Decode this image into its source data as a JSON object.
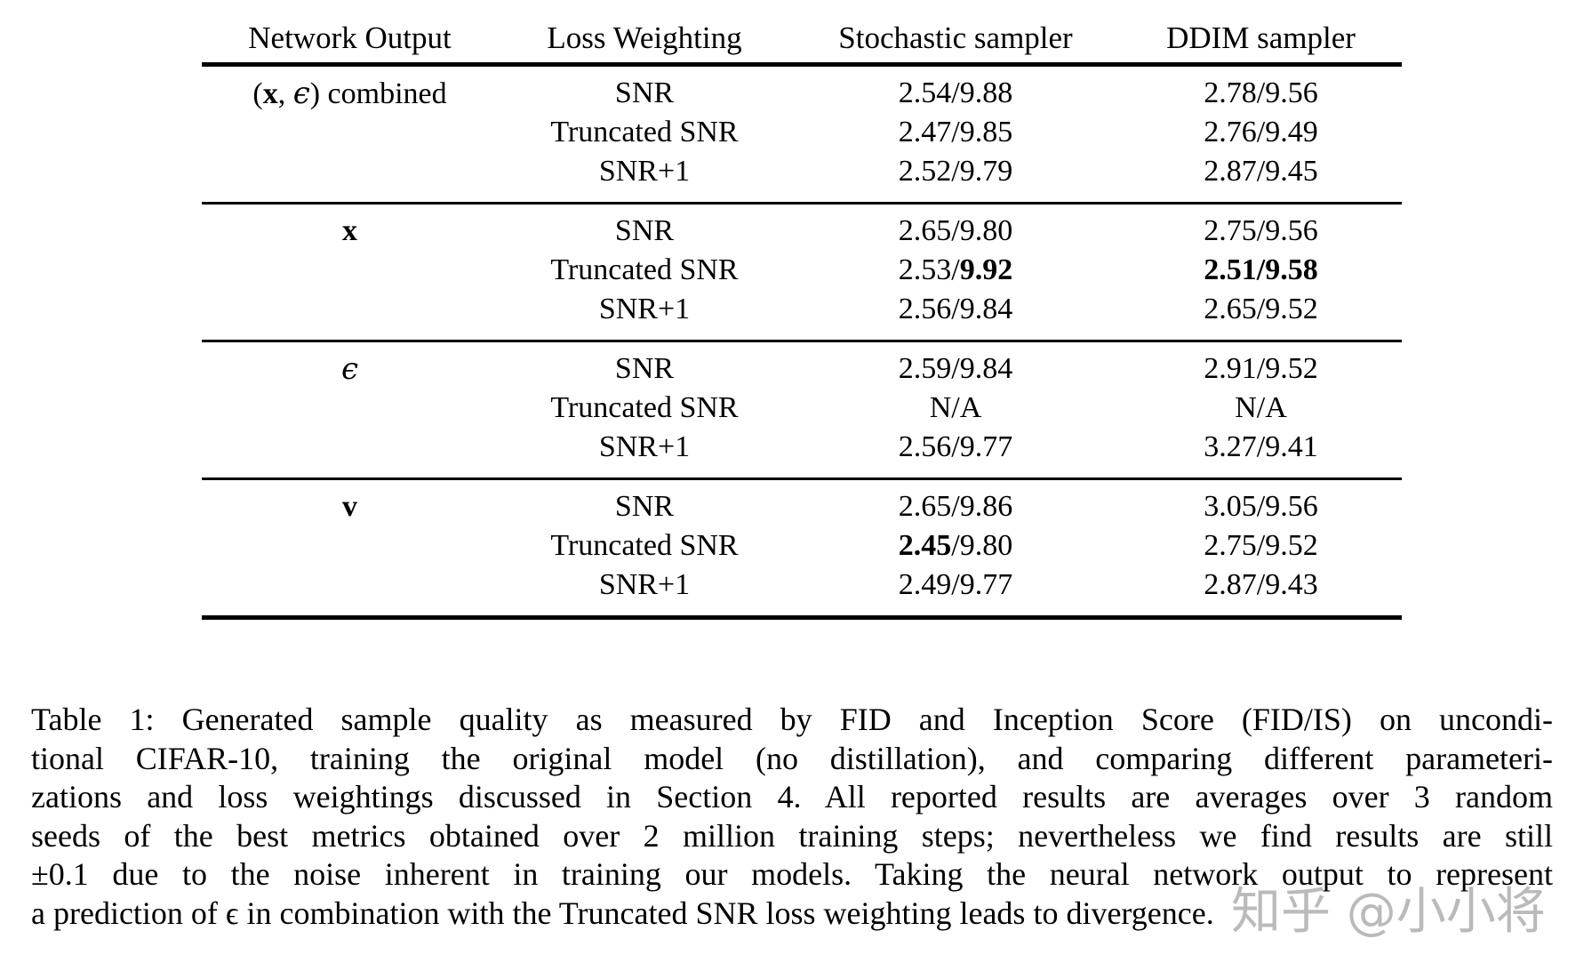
{
  "table": {
    "headers": [
      "Network Output",
      "Loss Weighting",
      "Stochastic sampler",
      "DDIM sampler"
    ],
    "groups": [
      {
        "output": [
          [
            "(",
            "n"
          ],
          [
            "x",
            "b"
          ],
          [
            ", ",
            "n"
          ],
          [
            "ϵ",
            "m"
          ],
          [
            ") combined",
            "n"
          ]
        ],
        "rows": [
          {
            "weighting": "SNR",
            "stochastic": [
              [
                "2.54/9.88",
                "n"
              ]
            ],
            "ddim": [
              [
                "2.78/9.56",
                "n"
              ]
            ]
          },
          {
            "weighting": "Truncated SNR",
            "stochastic": [
              [
                "2.47/9.85",
                "n"
              ]
            ],
            "ddim": [
              [
                "2.76/9.49",
                "n"
              ]
            ]
          },
          {
            "weighting": "SNR+1",
            "stochastic": [
              [
                "2.52/9.79",
                "n"
              ]
            ],
            "ddim": [
              [
                "2.87/9.45",
                "n"
              ]
            ]
          }
        ]
      },
      {
        "output": [
          [
            "x",
            "b"
          ]
        ],
        "rows": [
          {
            "weighting": "SNR",
            "stochastic": [
              [
                "2.65/9.80",
                "n"
              ]
            ],
            "ddim": [
              [
                "2.75/9.56",
                "n"
              ]
            ]
          },
          {
            "weighting": "Truncated SNR",
            "stochastic": [
              [
                "2.53/",
                "n"
              ],
              [
                "9.92",
                "b"
              ]
            ],
            "ddim": [
              [
                "2.51/9.58",
                "b"
              ]
            ]
          },
          {
            "weighting": "SNR+1",
            "stochastic": [
              [
                "2.56/9.84",
                "n"
              ]
            ],
            "ddim": [
              [
                "2.65/9.52",
                "n"
              ]
            ]
          }
        ]
      },
      {
        "output": [
          [
            "ϵ",
            "m"
          ]
        ],
        "rows": [
          {
            "weighting": "SNR",
            "stochastic": [
              [
                "2.59/9.84",
                "n"
              ]
            ],
            "ddim": [
              [
                "2.91/9.52",
                "n"
              ]
            ]
          },
          {
            "weighting": "Truncated SNR",
            "stochastic": [
              [
                "N/A",
                "n"
              ]
            ],
            "ddim": [
              [
                "N/A",
                "n"
              ]
            ]
          },
          {
            "weighting": "SNR+1",
            "stochastic": [
              [
                "2.56/9.77",
                "n"
              ]
            ],
            "ddim": [
              [
                "3.27/9.41",
                "n"
              ]
            ]
          }
        ]
      },
      {
        "output": [
          [
            "v",
            "b"
          ]
        ],
        "rows": [
          {
            "weighting": "SNR",
            "stochastic": [
              [
                "2.65/9.86",
                "n"
              ]
            ],
            "ddim": [
              [
                "3.05/9.56",
                "n"
              ]
            ]
          },
          {
            "weighting": "Truncated SNR",
            "stochastic": [
              [
                "2.45",
                "b"
              ],
              [
                "/9.80",
                "n"
              ]
            ],
            "ddim": [
              [
                "2.75/9.52",
                "n"
              ]
            ]
          },
          {
            "weighting": "SNR+1",
            "stochastic": [
              [
                "2.49/9.77",
                "n"
              ]
            ],
            "ddim": [
              [
                "2.87/9.43",
                "n"
              ]
            ]
          }
        ]
      }
    ]
  },
  "caption": {
    "lines": [
      "Table 1: Generated sample quality as measured by FID and Inception Score (FID/IS) on uncondi-",
      "tional CIFAR-10, training the original model (no distillation), and comparing different parameteri-",
      "zations and loss weightings discussed in Section 4. All reported results are averages over 3 random",
      "seeds of the best metrics obtained over 2 million training steps; nevertheless we find results are still",
      "±0.1 due to the noise inherent in training our models. Taking the neural network output to represent",
      "a prediction of ϵ in combination with the Truncated SNR loss weighting leads to divergence."
    ]
  },
  "watermark": {
    "text": "知乎 @小小将",
    "color": "#aeaeae"
  }
}
